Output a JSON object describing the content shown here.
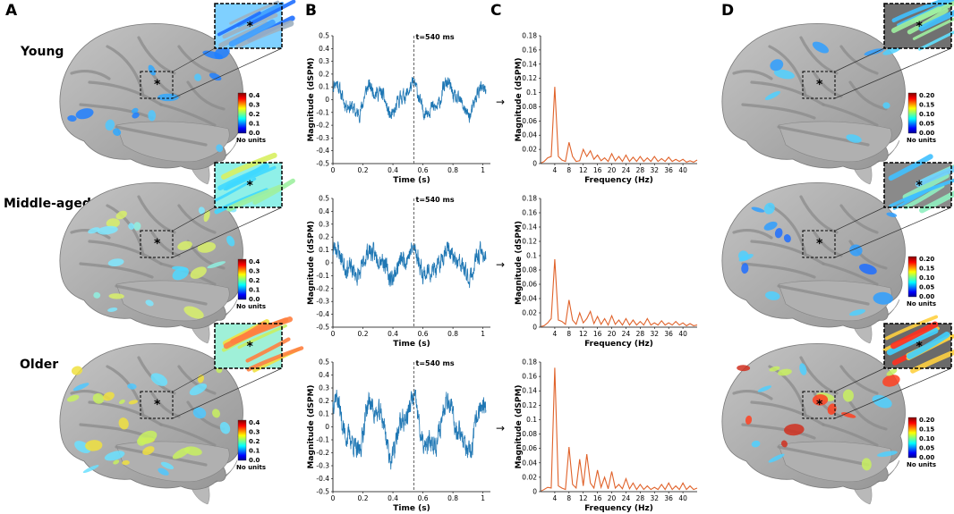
{
  "panels": {
    "A": "A",
    "B": "B",
    "C": "C",
    "D": "D"
  },
  "groups": [
    "Young",
    "Middle-aged",
    "Older"
  ],
  "colorbar_A": {
    "ticks": [
      "0.4",
      "0.3",
      "0.2",
      "0.1",
      "0.0"
    ],
    "units_label": "No units"
  },
  "colorbar_D": {
    "ticks": [
      "0.20",
      "0.15",
      "0.10",
      "0.05",
      "0.00"
    ],
    "units_label": "No units"
  },
  "colors": {
    "brain_gray": "#a9a9a9",
    "sulcus_gray": "#8e8e8e",
    "timeseries": "#1f77b4",
    "spectrum": "#e0622a"
  },
  "arrow": "→",
  "star": "*",
  "chart_data": [
    {
      "type": "line",
      "group": "Young",
      "title": "",
      "xlabel": "Time (s)",
      "ylabel": "Magnitude (dSPM)",
      "xlim": [
        0,
        1.05
      ],
      "ylim": [
        -0.5,
        0.5
      ],
      "xticks": [
        "0",
        "0.2",
        "0.4",
        "0.6",
        "0.8",
        "1"
      ],
      "yticks": [
        "0.5",
        "0.4",
        "0.3",
        "0.2",
        "0.1",
        "0",
        "-0.1",
        "-0.2",
        "-0.3",
        "-0.4",
        "-0.5"
      ],
      "marker_time": 0.54,
      "marker_label": "t=540 ms",
      "osc_freq_hz": 4,
      "osc_amp": 0.1,
      "noise_amp": 0.045,
      "seed": 11
    },
    {
      "type": "line",
      "group": "Middle-aged",
      "title": "",
      "xlabel": "Time (s)",
      "ylabel": "Magnitude (dSPM)",
      "xlim": [
        0,
        1.05
      ],
      "ylim": [
        -0.5,
        0.5
      ],
      "xticks": [
        "0",
        "0.2",
        "0.4",
        "0.6",
        "0.8",
        "1"
      ],
      "yticks": [
        "0.5",
        "0.4",
        "0.3",
        "0.2",
        "0.1",
        "0",
        "-0.1",
        "-0.2",
        "-0.3",
        "-0.4",
        "-0.5"
      ],
      "marker_time": 0.54,
      "marker_label": "t=540 ms",
      "osc_freq_hz": 4,
      "osc_amp": 0.09,
      "noise_amp": 0.06,
      "seed": 23
    },
    {
      "type": "line",
      "group": "Older",
      "title": "",
      "xlabel": "Time (s)",
      "ylabel": "Magnitude (dSPM)",
      "xlim": [
        0,
        1.05
      ],
      "ylim": [
        -0.5,
        0.5
      ],
      "xticks": [
        "0",
        "0.2",
        "0.4",
        "0.6",
        "0.8",
        "1"
      ],
      "yticks": [
        "0.5",
        "0.4",
        "0.3",
        "0.2",
        "0.1",
        "0",
        "-0.1",
        "-0.2",
        "-0.3",
        "-0.4",
        "-0.5"
      ],
      "marker_time": 0.54,
      "marker_label": "t=540 ms",
      "osc_freq_hz": 4,
      "osc_amp": 0.18,
      "noise_amp": 0.07,
      "seed": 37
    },
    {
      "type": "line",
      "group": "Young",
      "title": "",
      "xlabel": "Frequency (Hz)",
      "ylabel": "Magnitude (dSPM)",
      "xlim": [
        0,
        44
      ],
      "ylim": [
        0,
        0.18
      ],
      "xticks": [
        "4",
        "8",
        "12",
        "16",
        "20",
        "24",
        "28",
        "32",
        "36",
        "40"
      ],
      "yticks": [
        "0.18",
        "0.16",
        "0.14",
        "0.12",
        "0.1",
        "0.08",
        "0.06",
        "0.04",
        "0.02",
        "0"
      ],
      "x": [
        1,
        2,
        3,
        4,
        5,
        6,
        7,
        8,
        9,
        10,
        11,
        12,
        13,
        14,
        15,
        16,
        17,
        18,
        19,
        20,
        21,
        22,
        23,
        24,
        25,
        26,
        27,
        28,
        29,
        30,
        31,
        32,
        33,
        34,
        35,
        36,
        37,
        38,
        39,
        40,
        41,
        42,
        43,
        44
      ],
      "values": [
        0.003,
        0.008,
        0.01,
        0.108,
        0.01,
        0.005,
        0.003,
        0.03,
        0.01,
        0.003,
        0.004,
        0.02,
        0.01,
        0.018,
        0.006,
        0.012,
        0.004,
        0.008,
        0.003,
        0.014,
        0.004,
        0.01,
        0.003,
        0.012,
        0.003,
        0.009,
        0.003,
        0.01,
        0.003,
        0.008,
        0.003,
        0.01,
        0.003,
        0.007,
        0.003,
        0.009,
        0.003,
        0.006,
        0.003,
        0.006,
        0.002,
        0.004,
        0.002,
        0.005
      ]
    },
    {
      "type": "line",
      "group": "Middle-aged",
      "title": "",
      "xlabel": "Frequency (Hz)",
      "ylabel": "Magnitude (dSPM)",
      "xlim": [
        0,
        44
      ],
      "ylim": [
        0,
        0.18
      ],
      "xticks": [
        "4",
        "8",
        "12",
        "16",
        "20",
        "24",
        "28",
        "32",
        "36",
        "40"
      ],
      "yticks": [
        "0.18",
        "0.16",
        "0.14",
        "0.12",
        "0.1",
        "0.08",
        "0.06",
        "0.04",
        "0.02",
        "0"
      ],
      "x": [
        1,
        2,
        3,
        4,
        5,
        6,
        7,
        8,
        9,
        10,
        11,
        12,
        13,
        14,
        15,
        16,
        17,
        18,
        19,
        20,
        21,
        22,
        23,
        24,
        25,
        26,
        27,
        28,
        29,
        30,
        31,
        32,
        33,
        34,
        35,
        36,
        37,
        38,
        39,
        40,
        41,
        42,
        43,
        44
      ],
      "values": [
        0.002,
        0.006,
        0.012,
        0.095,
        0.01,
        0.008,
        0.004,
        0.038,
        0.01,
        0.004,
        0.02,
        0.006,
        0.012,
        0.022,
        0.005,
        0.015,
        0.004,
        0.012,
        0.003,
        0.016,
        0.004,
        0.01,
        0.003,
        0.012,
        0.003,
        0.01,
        0.003,
        0.008,
        0.003,
        0.012,
        0.003,
        0.006,
        0.003,
        0.009,
        0.003,
        0.006,
        0.003,
        0.008,
        0.003,
        0.006,
        0.002,
        0.005,
        0.002,
        0.003
      ]
    },
    {
      "type": "line",
      "group": "Older",
      "title": "",
      "xlabel": "Frequency (Hz)",
      "ylabel": "Magnitude (dSPM)",
      "xlim": [
        0,
        44
      ],
      "ylim": [
        0,
        0.18
      ],
      "xticks": [
        "4",
        "8",
        "12",
        "16",
        "20",
        "24",
        "28",
        "32",
        "36",
        "40"
      ],
      "yticks": [
        "0.18",
        "0.16",
        "0.14",
        "0.12",
        "0.1",
        "0.08",
        "0.06",
        "0.04",
        "0.02",
        "0"
      ],
      "x": [
        1,
        2,
        3,
        4,
        5,
        6,
        7,
        8,
        9,
        10,
        11,
        12,
        13,
        14,
        15,
        16,
        17,
        18,
        19,
        20,
        21,
        22,
        23,
        24,
        25,
        26,
        27,
        28,
        29,
        30,
        31,
        32,
        33,
        34,
        35,
        36,
        37,
        38,
        39,
        40,
        41,
        42,
        43,
        44
      ],
      "values": [
        0.003,
        0.006,
        0.005,
        0.172,
        0.008,
        0.005,
        0.003,
        0.062,
        0.01,
        0.005,
        0.045,
        0.008,
        0.052,
        0.012,
        0.005,
        0.03,
        0.006,
        0.02,
        0.004,
        0.028,
        0.005,
        0.01,
        0.004,
        0.018,
        0.004,
        0.012,
        0.003,
        0.01,
        0.003,
        0.008,
        0.003,
        0.006,
        0.003,
        0.01,
        0.003,
        0.012,
        0.003,
        0.008,
        0.003,
        0.012,
        0.003,
        0.008,
        0.003,
        0.005
      ]
    }
  ]
}
